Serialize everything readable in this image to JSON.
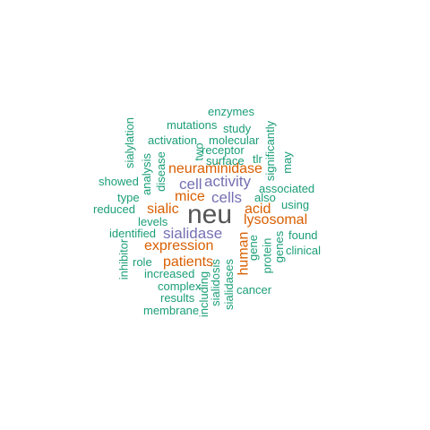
{
  "word_cloud": {
    "colors": {
      "green": "#1b9e77",
      "orange": "#d95f02",
      "purple": "#7570b3",
      "gray": "#555555"
    },
    "words": {
      "neu": "neu",
      "sialidase": "sialidase",
      "cells": "cells",
      "activity": "activity",
      "cell": "cell",
      "expression": "expression",
      "neuraminidase": "neuraminidase",
      "patients": "patients",
      "sialic": "sialic",
      "acid": "acid",
      "lysosomal": "lysosomal",
      "mice": "mice",
      "human": "human",
      "enzymes": "enzymes",
      "mutations": "mutations",
      "study": "study",
      "activation": "activation",
      "molecular": "molecular",
      "two": "two",
      "receptor": "receptor",
      "surface": "surface",
      "tlr": "tlr",
      "sialylation": "sialylation",
      "analysis": "analysis",
      "disease": "disease",
      "significantly": "significantly",
      "may": "may",
      "showed": "showed",
      "type": "type",
      "associated": "associated",
      "also": "also",
      "reduced": "reduced",
      "using": "using",
      "levels": "levels",
      "identified": "identified",
      "found": "found",
      "gene": "gene",
      "protein": "protein",
      "genes": "genes",
      "clinical": "clinical",
      "inhibitor": "inhibitor",
      "role": "role",
      "increased": "increased",
      "complex": "complex",
      "results": "results",
      "membrane": "membrane",
      "including": "including",
      "sialidosis": "sialidosis",
      "sialidases": "sialidases",
      "cancer": "cancer"
    }
  }
}
